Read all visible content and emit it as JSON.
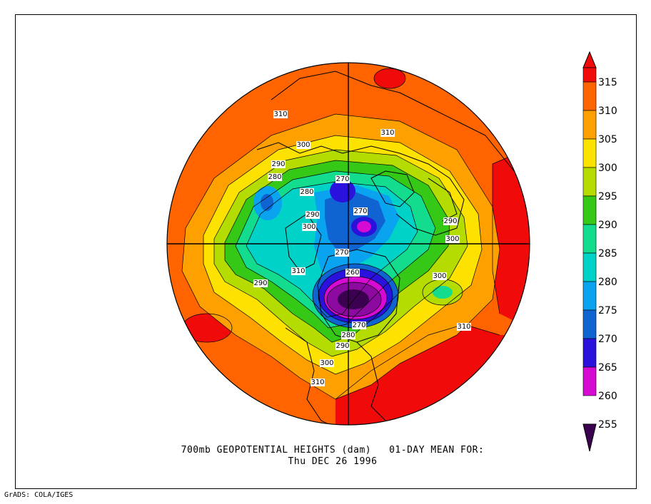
{
  "title_line1": "700mb GEOPOTENTIAL HEIGHTS (dam)   01-DAY MEAN FOR:",
  "title_line2": "Thu DEC 26 1996",
  "credit": "GrADS: COLA/IGES",
  "colorbar": {
    "levels": [
      {
        "label": "315",
        "color": "#f00a0a"
      },
      {
        "label": "310",
        "color": "#ff6400"
      },
      {
        "label": "305",
        "color": "#fda000"
      },
      {
        "label": "300",
        "color": "#fde200"
      },
      {
        "label": "295",
        "color": "#b4dc00"
      },
      {
        "label": "290",
        "color": "#35c817"
      },
      {
        "label": "285",
        "color": "#13dc8e"
      },
      {
        "label": "280",
        "color": "#00d2c8"
      },
      {
        "label": "275",
        "color": "#0aa3f0"
      },
      {
        "label": "270",
        "color": "#1064d2"
      },
      {
        "label": "265",
        "color": "#2a12dc"
      },
      {
        "label": "260",
        "color": "#d60ad2"
      },
      {
        "label": "255",
        "color": "#8c0aa0"
      }
    ],
    "top_color": "#f00a0a",
    "bottom_color": "#3c0050"
  },
  "contour_labels": [
    {
      "text": "310"
    },
    {
      "text": "310"
    },
    {
      "text": "300"
    },
    {
      "text": "290"
    },
    {
      "text": "280"
    },
    {
      "text": "270"
    },
    {
      "text": "280"
    },
    {
      "text": "290"
    },
    {
      "text": "300"
    },
    {
      "text": "270"
    },
    {
      "text": "290"
    },
    {
      "text": "300"
    },
    {
      "text": "270"
    },
    {
      "text": "310"
    },
    {
      "text": "260"
    },
    {
      "text": "290"
    },
    {
      "text": "300"
    },
    {
      "text": "310"
    },
    {
      "text": "270"
    },
    {
      "text": "280"
    },
    {
      "text": "290"
    },
    {
      "text": "300"
    },
    {
      "text": "310"
    }
  ]
}
